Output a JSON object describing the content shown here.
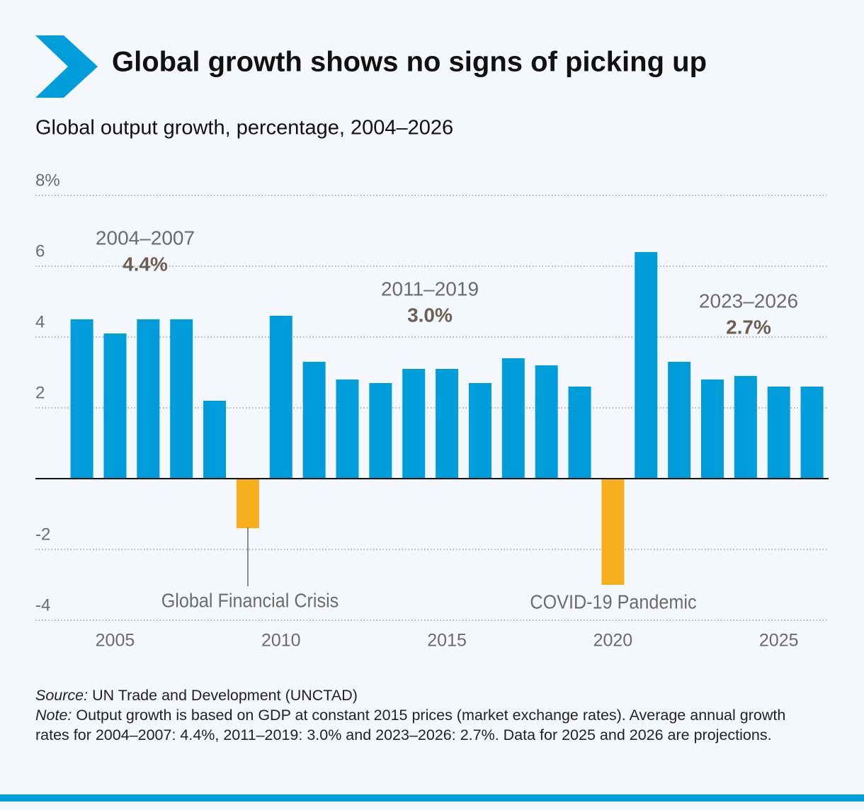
{
  "chart_data": {
    "type": "bar",
    "title": "Global growth shows no signs of picking up",
    "subtitle": "Global output growth, percentage, 2004–2026",
    "x": [
      2004,
      2005,
      2006,
      2007,
      2008,
      2009,
      2010,
      2011,
      2012,
      2013,
      2014,
      2015,
      2016,
      2017,
      2018,
      2019,
      2020,
      2021,
      2022,
      2023,
      2024,
      2025,
      2026
    ],
    "values": [
      4.5,
      4.1,
      4.5,
      4.5,
      2.2,
      -1.4,
      4.6,
      3.3,
      2.8,
      2.7,
      3.1,
      3.1,
      2.7,
      3.4,
      3.2,
      2.6,
      -3.0,
      6.4,
      3.3,
      2.8,
      2.9,
      2.6,
      2.6
    ],
    "color": "#009ddb",
    "negative_color": "#f7ae1d",
    "xlim": [
      2002.6,
      2026.5
    ],
    "xticks": [
      2005,
      2010,
      2015,
      2020,
      2025
    ],
    "ylim": [
      -4,
      8
    ],
    "yticks": [
      -4,
      -2,
      2,
      4,
      6,
      {
        "value": 8,
        "label": "8%"
      }
    ],
    "grid": true,
    "period_annotations": [
      {
        "period": "2004–2007",
        "average": "4.4%"
      },
      {
        "period": "2011–2019",
        "average": "3.0%"
      },
      {
        "period": "2023–2026",
        "average": "2.7%"
      }
    ],
    "event_annotations": [
      "Global Financial Crisis",
      "COVID-19 Pandemic"
    ],
    "source_label": "Source:",
    "source": "UN Trade and Development (UNCTAD)",
    "note_label": "Note:",
    "note": "Output growth is based on GDP at constant 2015 prices (market exchange rates). Average annual growth rates for 2004–2007: 4.4%, 2011–2019: 3.0% and 2023–2026: 2.7%. Data for 2025 and 2026 are projections."
  }
}
